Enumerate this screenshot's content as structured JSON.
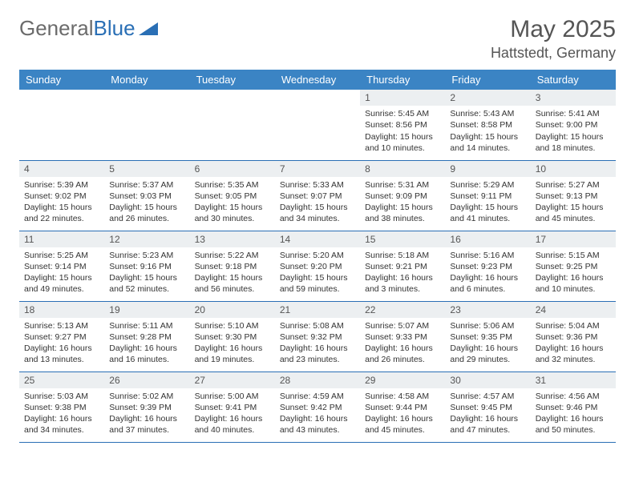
{
  "logo": {
    "text1": "General",
    "text2": "Blue"
  },
  "title": "May 2025",
  "location": "Hattstedt, Germany",
  "colors": {
    "header_bg": "#3b84c4",
    "header_fg": "#ffffff",
    "daynum_bg": "#eceff1",
    "border": "#2a6fb5",
    "text": "#333333"
  },
  "dayNames": [
    "Sunday",
    "Monday",
    "Tuesday",
    "Wednesday",
    "Thursday",
    "Friday",
    "Saturday"
  ],
  "weeks": [
    [
      null,
      null,
      null,
      null,
      {
        "n": "1",
        "sr": "Sunrise: 5:45 AM",
        "ss": "Sunset: 8:56 PM",
        "d1": "Daylight: 15 hours",
        "d2": "and 10 minutes."
      },
      {
        "n": "2",
        "sr": "Sunrise: 5:43 AM",
        "ss": "Sunset: 8:58 PM",
        "d1": "Daylight: 15 hours",
        "d2": "and 14 minutes."
      },
      {
        "n": "3",
        "sr": "Sunrise: 5:41 AM",
        "ss": "Sunset: 9:00 PM",
        "d1": "Daylight: 15 hours",
        "d2": "and 18 minutes."
      }
    ],
    [
      {
        "n": "4",
        "sr": "Sunrise: 5:39 AM",
        "ss": "Sunset: 9:02 PM",
        "d1": "Daylight: 15 hours",
        "d2": "and 22 minutes."
      },
      {
        "n": "5",
        "sr": "Sunrise: 5:37 AM",
        "ss": "Sunset: 9:03 PM",
        "d1": "Daylight: 15 hours",
        "d2": "and 26 minutes."
      },
      {
        "n": "6",
        "sr": "Sunrise: 5:35 AM",
        "ss": "Sunset: 9:05 PM",
        "d1": "Daylight: 15 hours",
        "d2": "and 30 minutes."
      },
      {
        "n": "7",
        "sr": "Sunrise: 5:33 AM",
        "ss": "Sunset: 9:07 PM",
        "d1": "Daylight: 15 hours",
        "d2": "and 34 minutes."
      },
      {
        "n": "8",
        "sr": "Sunrise: 5:31 AM",
        "ss": "Sunset: 9:09 PM",
        "d1": "Daylight: 15 hours",
        "d2": "and 38 minutes."
      },
      {
        "n": "9",
        "sr": "Sunrise: 5:29 AM",
        "ss": "Sunset: 9:11 PM",
        "d1": "Daylight: 15 hours",
        "d2": "and 41 minutes."
      },
      {
        "n": "10",
        "sr": "Sunrise: 5:27 AM",
        "ss": "Sunset: 9:13 PM",
        "d1": "Daylight: 15 hours",
        "d2": "and 45 minutes."
      }
    ],
    [
      {
        "n": "11",
        "sr": "Sunrise: 5:25 AM",
        "ss": "Sunset: 9:14 PM",
        "d1": "Daylight: 15 hours",
        "d2": "and 49 minutes."
      },
      {
        "n": "12",
        "sr": "Sunrise: 5:23 AM",
        "ss": "Sunset: 9:16 PM",
        "d1": "Daylight: 15 hours",
        "d2": "and 52 minutes."
      },
      {
        "n": "13",
        "sr": "Sunrise: 5:22 AM",
        "ss": "Sunset: 9:18 PM",
        "d1": "Daylight: 15 hours",
        "d2": "and 56 minutes."
      },
      {
        "n": "14",
        "sr": "Sunrise: 5:20 AM",
        "ss": "Sunset: 9:20 PM",
        "d1": "Daylight: 15 hours",
        "d2": "and 59 minutes."
      },
      {
        "n": "15",
        "sr": "Sunrise: 5:18 AM",
        "ss": "Sunset: 9:21 PM",
        "d1": "Daylight: 16 hours",
        "d2": "and 3 minutes."
      },
      {
        "n": "16",
        "sr": "Sunrise: 5:16 AM",
        "ss": "Sunset: 9:23 PM",
        "d1": "Daylight: 16 hours",
        "d2": "and 6 minutes."
      },
      {
        "n": "17",
        "sr": "Sunrise: 5:15 AM",
        "ss": "Sunset: 9:25 PM",
        "d1": "Daylight: 16 hours",
        "d2": "and 10 minutes."
      }
    ],
    [
      {
        "n": "18",
        "sr": "Sunrise: 5:13 AM",
        "ss": "Sunset: 9:27 PM",
        "d1": "Daylight: 16 hours",
        "d2": "and 13 minutes."
      },
      {
        "n": "19",
        "sr": "Sunrise: 5:11 AM",
        "ss": "Sunset: 9:28 PM",
        "d1": "Daylight: 16 hours",
        "d2": "and 16 minutes."
      },
      {
        "n": "20",
        "sr": "Sunrise: 5:10 AM",
        "ss": "Sunset: 9:30 PM",
        "d1": "Daylight: 16 hours",
        "d2": "and 19 minutes."
      },
      {
        "n": "21",
        "sr": "Sunrise: 5:08 AM",
        "ss": "Sunset: 9:32 PM",
        "d1": "Daylight: 16 hours",
        "d2": "and 23 minutes."
      },
      {
        "n": "22",
        "sr": "Sunrise: 5:07 AM",
        "ss": "Sunset: 9:33 PM",
        "d1": "Daylight: 16 hours",
        "d2": "and 26 minutes."
      },
      {
        "n": "23",
        "sr": "Sunrise: 5:06 AM",
        "ss": "Sunset: 9:35 PM",
        "d1": "Daylight: 16 hours",
        "d2": "and 29 minutes."
      },
      {
        "n": "24",
        "sr": "Sunrise: 5:04 AM",
        "ss": "Sunset: 9:36 PM",
        "d1": "Daylight: 16 hours",
        "d2": "and 32 minutes."
      }
    ],
    [
      {
        "n": "25",
        "sr": "Sunrise: 5:03 AM",
        "ss": "Sunset: 9:38 PM",
        "d1": "Daylight: 16 hours",
        "d2": "and 34 minutes."
      },
      {
        "n": "26",
        "sr": "Sunrise: 5:02 AM",
        "ss": "Sunset: 9:39 PM",
        "d1": "Daylight: 16 hours",
        "d2": "and 37 minutes."
      },
      {
        "n": "27",
        "sr": "Sunrise: 5:00 AM",
        "ss": "Sunset: 9:41 PM",
        "d1": "Daylight: 16 hours",
        "d2": "and 40 minutes."
      },
      {
        "n": "28",
        "sr": "Sunrise: 4:59 AM",
        "ss": "Sunset: 9:42 PM",
        "d1": "Daylight: 16 hours",
        "d2": "and 43 minutes."
      },
      {
        "n": "29",
        "sr": "Sunrise: 4:58 AM",
        "ss": "Sunset: 9:44 PM",
        "d1": "Daylight: 16 hours",
        "d2": "and 45 minutes."
      },
      {
        "n": "30",
        "sr": "Sunrise: 4:57 AM",
        "ss": "Sunset: 9:45 PM",
        "d1": "Daylight: 16 hours",
        "d2": "and 47 minutes."
      },
      {
        "n": "31",
        "sr": "Sunrise: 4:56 AM",
        "ss": "Sunset: 9:46 PM",
        "d1": "Daylight: 16 hours",
        "d2": "and 50 minutes."
      }
    ]
  ]
}
